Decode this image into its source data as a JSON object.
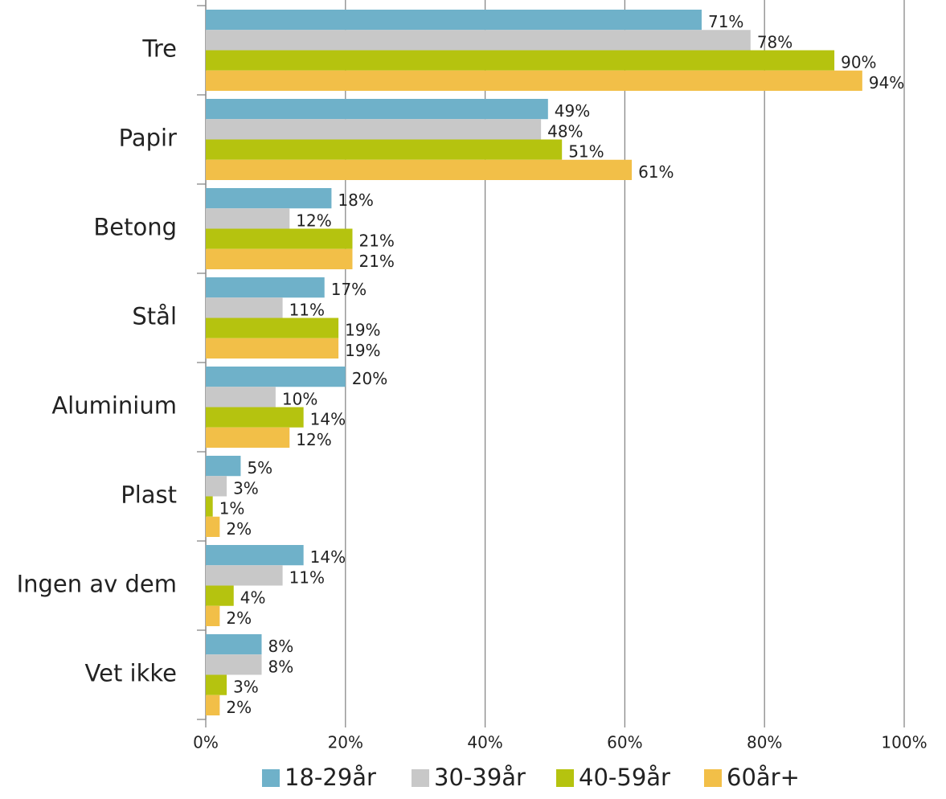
{
  "chart_data": {
    "type": "barh",
    "categories": [
      "Tre",
      "Papir",
      "Betong",
      "Stål",
      "Aluminium",
      "Plast",
      "Ingen av dem",
      "Vet ikke"
    ],
    "series": [
      {
        "name": "18-29år",
        "color": "#6fb1c9",
        "values": [
          71,
          49,
          18,
          17,
          20,
          5,
          14,
          8
        ],
        "value_labels": [
          "71%",
          "49%",
          "18%",
          "17%",
          "20%",
          "5%",
          "14%",
          "8%"
        ]
      },
      {
        "name": "30-39år",
        "color": "#c8c8c8",
        "values": [
          78,
          48,
          12,
          11,
          10,
          3,
          11,
          8
        ],
        "value_labels": [
          "78%",
          "48%",
          "12%",
          "11%",
          "10%",
          "3%",
          "11%",
          "8%"
        ]
      },
      {
        "name": "40-59år",
        "color": "#b5c30f",
        "values": [
          90,
          51,
          21,
          19,
          14,
          1,
          4,
          3
        ],
        "value_labels": [
          "90%",
          "51%",
          "21%",
          "19%",
          "14%",
          "1%",
          "4%",
          "3%"
        ]
      },
      {
        "name": "60år+",
        "color": "#f2bf48",
        "values": [
          94,
          61,
          21,
          19,
          12,
          2,
          2,
          2
        ],
        "value_labels": [
          "94%",
          "61%",
          "21%",
          "19%",
          "12%",
          "2%",
          "2%",
          "2%"
        ]
      }
    ],
    "xlim": [
      0,
      100
    ],
    "xticks": [
      {
        "value": 0,
        "label": "0%"
      },
      {
        "value": 20,
        "label": "20%"
      },
      {
        "value": 40,
        "label": "40%"
      },
      {
        "value": 60,
        "label": "60%"
      },
      {
        "value": 80,
        "label": "80%"
      },
      {
        "value": 100,
        "label": "100%"
      }
    ],
    "grid": true,
    "legend": "bottom"
  }
}
